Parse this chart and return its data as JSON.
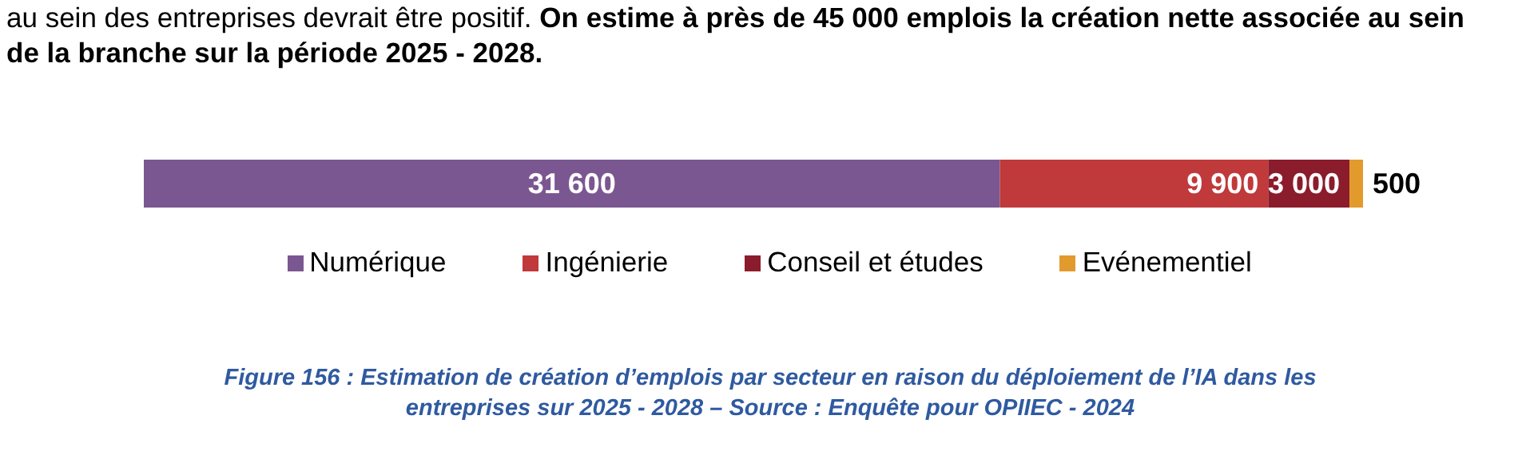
{
  "chart_data": {
    "type": "bar",
    "orientation": "horizontal",
    "stacked": true,
    "categories": [
      null
    ],
    "series": [
      {
        "name": "Numérique",
        "color": "#7b5791",
        "values": [
          31600
        ],
        "value_labels": [
          "31 600"
        ]
      },
      {
        "name": "Ingénierie",
        "color": "#c0393b",
        "values": [
          9900
        ],
        "value_labels": [
          "9 900"
        ]
      },
      {
        "name": "Conseil et études",
        "color": "#8b1c2c",
        "values": [
          3000
        ],
        "value_labels": [
          "3 000"
        ]
      },
      {
        "name": "Evénementiel",
        "color": "#e39a2c",
        "values": [
          500
        ],
        "value_labels": [
          "500"
        ]
      }
    ],
    "legend": "bottom",
    "annotations": [
      "au sein des entreprises devrait être positif.",
      "On estime à près de 45 000 emplois la création nette associée au sein de la branche sur la période 2025 - 2028.",
      "Figure 156 : Estimation de création d’emplois par secteur en raison du déploiement de l’IA dans les entreprises sur 2025 - 2028 – Source : Enquête pour OPIIEC - 2024"
    ]
  }
}
